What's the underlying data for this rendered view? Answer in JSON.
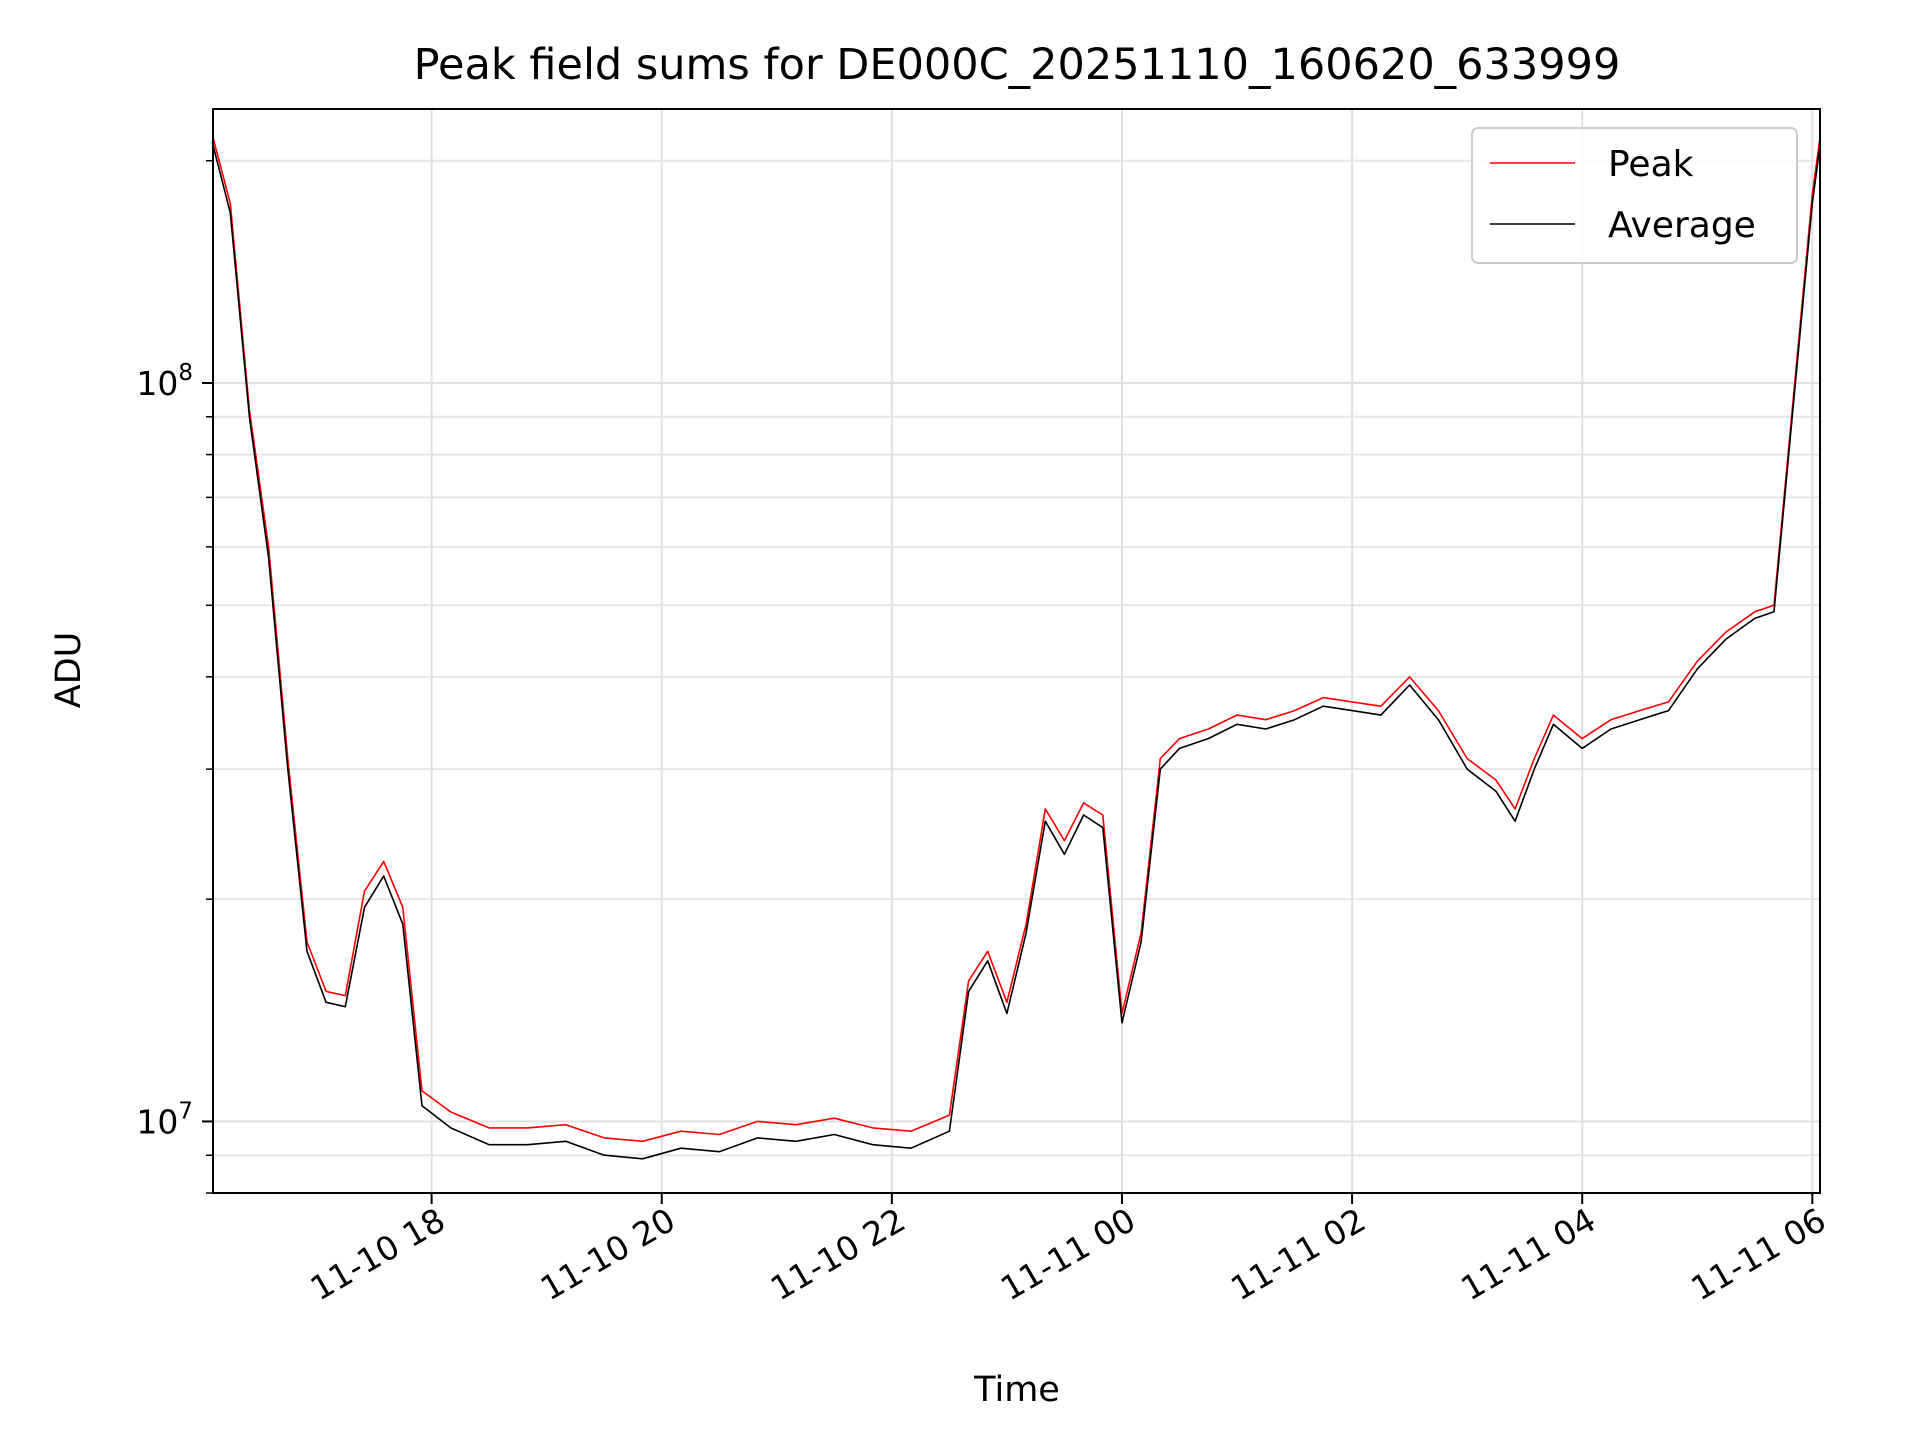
{
  "chart_data": {
    "type": "line",
    "title": "Peak field sums for DE000C_20251110_160620_633999",
    "xlabel": "Time",
    "ylabel": "ADU",
    "yscale": "log",
    "ylim": [
      8000000,
      235000000
    ],
    "xlim": [
      "11-10 16:06",
      "11-11 06:04"
    ],
    "x_ticks": [
      {
        "value": "11-10 18:00",
        "label": "11-10 18"
      },
      {
        "value": "11-10 20:00",
        "label": "11-10 20"
      },
      {
        "value": "11-10 22:00",
        "label": "11-10 22"
      },
      {
        "value": "11-11 00:00",
        "label": "11-11 00"
      },
      {
        "value": "11-11 02:00",
        "label": "11-11 02"
      },
      {
        "value": "11-11 04:00",
        "label": "11-11 04"
      },
      {
        "value": "11-11 06:00",
        "label": "11-11 06"
      }
    ],
    "y_ticks": [
      {
        "value": 10000000,
        "base": "10",
        "exp": "7"
      },
      {
        "value": 100000000,
        "base": "10",
        "exp": "8"
      }
    ],
    "grid": true,
    "legend": "top-right",
    "series": [
      {
        "name": "Peak",
        "color": "#ff0000",
        "x": [
          "11-10 16:06",
          "11-10 16:15",
          "11-10 16:25",
          "11-10 16:35",
          "11-10 16:45",
          "11-10 16:55",
          "11-10 17:05",
          "11-10 17:15",
          "11-10 17:25",
          "11-10 17:35",
          "11-10 17:45",
          "11-10 17:55",
          "11-10 18:10",
          "11-10 18:30",
          "11-10 18:50",
          "11-10 19:10",
          "11-10 19:30",
          "11-10 19:50",
          "11-10 20:10",
          "11-10 20:30",
          "11-10 20:50",
          "11-10 21:10",
          "11-10 21:30",
          "11-10 21:50",
          "11-10 22:10",
          "11-10 22:30",
          "11-10 22:40",
          "11-10 22:50",
          "11-10 23:00",
          "11-10 23:10",
          "11-10 23:20",
          "11-10 23:30",
          "11-10 23:40",
          "11-10 23:50",
          "11-11 00:00",
          "11-11 00:10",
          "11-11 00:20",
          "11-11 00:30",
          "11-11 00:45",
          "11-11 01:00",
          "11-11 01:15",
          "11-11 01:30",
          "11-11 01:45",
          "11-11 02:00",
          "11-11 02:15",
          "11-11 02:30",
          "11-11 02:45",
          "11-11 03:00",
          "11-11 03:15",
          "11-11 03:25",
          "11-11 03:35",
          "11-11 03:45",
          "11-11 04:00",
          "11-11 04:15",
          "11-11 04:30",
          "11-11 04:45",
          "11-11 05:00",
          "11-11 05:15",
          "11-11 05:30",
          "11-11 05:40",
          "11-11 05:50",
          "11-11 06:00",
          "11-11 06:04"
        ],
        "values": [
          215000000,
          175000000,
          92000000,
          60000000,
          31000000,
          17500000,
          15000000,
          14800000,
          20500000,
          22500000,
          19500000,
          11000000,
          10300000,
          9800000,
          9800000,
          9900000,
          9500000,
          9400000,
          9700000,
          9600000,
          10000000,
          9900000,
          10100000,
          9800000,
          9700000,
          10200000,
          15500000,
          17000000,
          14500000,
          18500000,
          26500000,
          24000000,
          27000000,
          26000000,
          14000000,
          18000000,
          31000000,
          33000000,
          34000000,
          35500000,
          35000000,
          36000000,
          37500000,
          37000000,
          36500000,
          40000000,
          36000000,
          31000000,
          29000000,
          26500000,
          31000000,
          35500000,
          33000000,
          35000000,
          36000000,
          37000000,
          42000000,
          46000000,
          49000000,
          50000000,
          95000000,
          180000000,
          215000000
        ]
      },
      {
        "name": "Average",
        "color": "#000000",
        "x": [
          "11-10 16:06",
          "11-10 16:15",
          "11-10 16:25",
          "11-10 16:35",
          "11-10 16:45",
          "11-10 16:55",
          "11-10 17:05",
          "11-10 17:15",
          "11-10 17:25",
          "11-10 17:35",
          "11-10 17:45",
          "11-10 17:55",
          "11-10 18:10",
          "11-10 18:30",
          "11-10 18:50",
          "11-10 19:10",
          "11-10 19:30",
          "11-10 19:50",
          "11-10 20:10",
          "11-10 20:30",
          "11-10 20:50",
          "11-10 21:10",
          "11-10 21:30",
          "11-10 21:50",
          "11-10 22:10",
          "11-10 22:30",
          "11-10 22:40",
          "11-10 22:50",
          "11-10 23:00",
          "11-10 23:10",
          "11-10 23:20",
          "11-10 23:30",
          "11-10 23:40",
          "11-10 23:50",
          "11-11 00:00",
          "11-11 00:10",
          "11-11 00:20",
          "11-11 00:30",
          "11-11 00:45",
          "11-11 01:00",
          "11-11 01:15",
          "11-11 01:30",
          "11-11 01:45",
          "11-11 02:00",
          "11-11 02:15",
          "11-11 02:30",
          "11-11 02:45",
          "11-11 03:00",
          "11-11 03:15",
          "11-11 03:25",
          "11-11 03:35",
          "11-11 03:45",
          "11-11 04:00",
          "11-11 04:15",
          "11-11 04:30",
          "11-11 04:45",
          "11-11 05:00",
          "11-11 05:15",
          "11-11 05:30",
          "11-11 05:40",
          "11-11 05:50",
          "11-11 06:00",
          "11-11 06:04"
        ],
        "values": [
          210000000,
          170000000,
          90000000,
          58000000,
          30000000,
          17000000,
          14500000,
          14300000,
          19500000,
          21500000,
          18500000,
          10500000,
          9800000,
          9300000,
          9300000,
          9400000,
          9000000,
          8900000,
          9200000,
          9100000,
          9500000,
          9400000,
          9600000,
          9300000,
          9200000,
          9700000,
          15000000,
          16500000,
          14000000,
          18000000,
          25500000,
          23000000,
          26000000,
          25000000,
          13600000,
          17500000,
          30000000,
          32000000,
          33000000,
          34500000,
          34000000,
          35000000,
          36500000,
          36000000,
          35500000,
          39000000,
          35000000,
          30000000,
          28000000,
          25500000,
          30000000,
          34500000,
          32000000,
          34000000,
          35000000,
          36000000,
          41000000,
          45000000,
          48000000,
          49000000,
          93000000,
          175000000,
          210000000
        ]
      }
    ]
  }
}
